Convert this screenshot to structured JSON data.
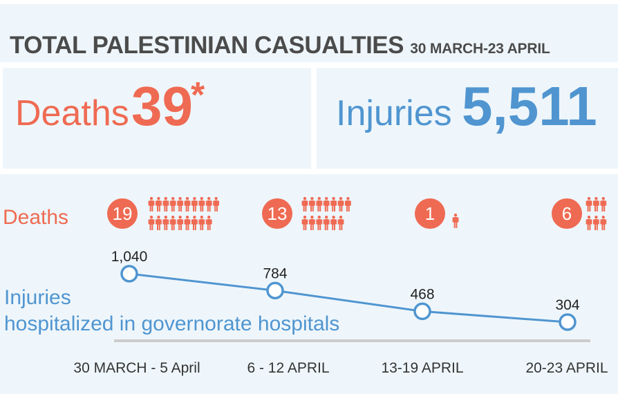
{
  "header": {
    "title": "TOTAL PALESTINIAN CASUALTIES",
    "subtitle": "30 MARCH-23 APRIL"
  },
  "summary": {
    "deaths_label": "Deaths",
    "deaths_value": "39",
    "deaths_marker": "*",
    "injuries_label": "Injuries",
    "injuries_value": "5,511"
  },
  "chart": {
    "deaths_row_label": "Deaths",
    "injuries_caption_line1": "Injuries",
    "injuries_caption_line2": "hospitalized in governorate hospitals"
  },
  "colors": {
    "deaths": "#ef6a52",
    "injuries": "#5095d0",
    "panel": "#eef6fb",
    "title": "#4b4b4b",
    "axis": "#cccccc"
  },
  "icons": {
    "person": "person-icon"
  },
  "chart_data": {
    "type": "line",
    "title": "TOTAL PALESTINIAN CASUALTIES",
    "subtitle": "30 MARCH-23 APRIL",
    "categories": [
      "30 MARCH - 5 April",
      "6 - 12 APRIL",
      "13-19 APRIL",
      "20-23 APRIL"
    ],
    "series": [
      {
        "name": "Injuries",
        "values": [
          1040,
          784,
          468,
          304
        ],
        "labels": [
          "1,040",
          "784",
          "468",
          "304"
        ]
      },
      {
        "name": "Deaths",
        "values": [
          19,
          13,
          1,
          6
        ]
      }
    ],
    "totals": {
      "deaths": 39,
      "injuries": 5511
    },
    "grid": false,
    "legend": "none"
  }
}
